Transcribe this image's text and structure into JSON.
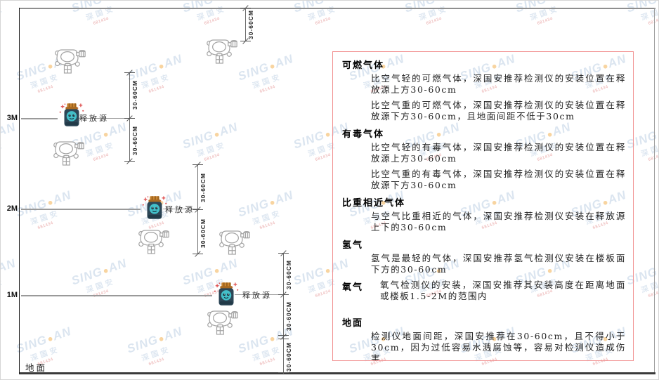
{
  "watermark": {
    "main": "SING",
    "dot": "●",
    "main2": "AN",
    "sub": "深国安",
    "red_code": "681434"
  },
  "diagram": {
    "axis_labels": [
      "3M",
      "2M",
      "1M"
    ],
    "ground_label": "地面",
    "source_label": "释放源",
    "dim_label": "30-60CM"
  },
  "panel": {
    "sections": [
      {
        "heading": "可燃气体",
        "paragraphs": [
          "比空气轻的可燃气体，深国安推荐检测仪的安装位置在释放源上方30-60cm",
          "比空气重的可燃气体，深国安推荐检测仪的安装位置在释放源下方30-60cm，且地面间距不低于30cm"
        ]
      },
      {
        "heading": "有毒气体",
        "paragraphs": [
          "比空气轻的有毒气体，深国安推荐检测仪的安装位置在释放源上方30-60cm",
          "比空气重的有毒气体，深国安推荐检测仪的安装位置在释放源下方30-60cm"
        ]
      },
      {
        "heading": "比重相近气体",
        "paragraphs": [
          "与空气比重相近的气体，深国安推荐检测仪安装在释放源上下的30-60cm"
        ]
      },
      {
        "heading": "氢气",
        "paragraphs": [
          "氢气是最轻的气体，深国安推荐氢气检测仪安装在楼板面下方的30-60cm"
        ]
      },
      {
        "heading": "氧气",
        "inline": true,
        "paragraphs": [
          "氧气检测仪的安装，深国安推荐其安装高度在距离地面或楼板1.5-2M的范围内"
        ]
      },
      {
        "heading": "地面",
        "paragraphs": [
          "检测仪地面间距，深国安推荐在30-60cm，且不得小于30cm，因为过低容易水溅腐蚀等，容易对检测仪造成伤害"
        ]
      }
    ]
  },
  "colors": {
    "panel_border": "#f19090",
    "axis": "#1b1b1b",
    "frame": "#8f8f8f",
    "dim_line": "#555555",
    "level_line": "#9a9a9a",
    "source_body": "#2d4656",
    "source_cap": "#c98430",
    "source_face": "#43bfc9",
    "watermark_blue": "#92b0d2",
    "watermark_orange": "#f0a233",
    "watermark_red": "#d96a6a"
  }
}
